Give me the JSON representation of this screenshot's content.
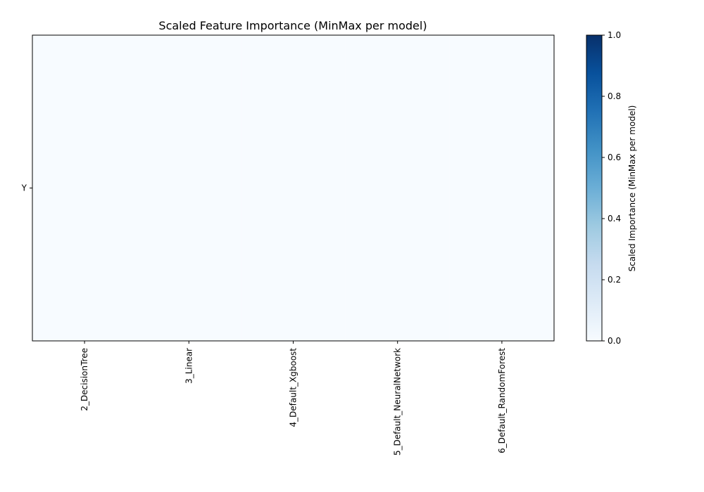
{
  "chart_data": {
    "type": "heatmap",
    "title": "Scaled Feature Importance (MinMax per model)",
    "xlabel": "",
    "ylabel": "",
    "rows": [
      "Y"
    ],
    "columns": [
      "2_DecisionTree",
      "3_Linear",
      "4_Default_Xgboost",
      "5_Default_NeuralNetwork",
      "6_Default_RandomForest"
    ],
    "values": [
      [
        0,
        0,
        0,
        0,
        0
      ]
    ],
    "colormap": "Blues",
    "color_low": "#f7fbff",
    "color_high": "#08306b",
    "colorbar": {
      "label": "Scaled Importance (MinMax per model)",
      "range": [
        0.0,
        1.0
      ],
      "ticks": [
        "0.0",
        "0.2",
        "0.4",
        "0.6",
        "0.8",
        "1.0"
      ]
    },
    "grid": false
  }
}
